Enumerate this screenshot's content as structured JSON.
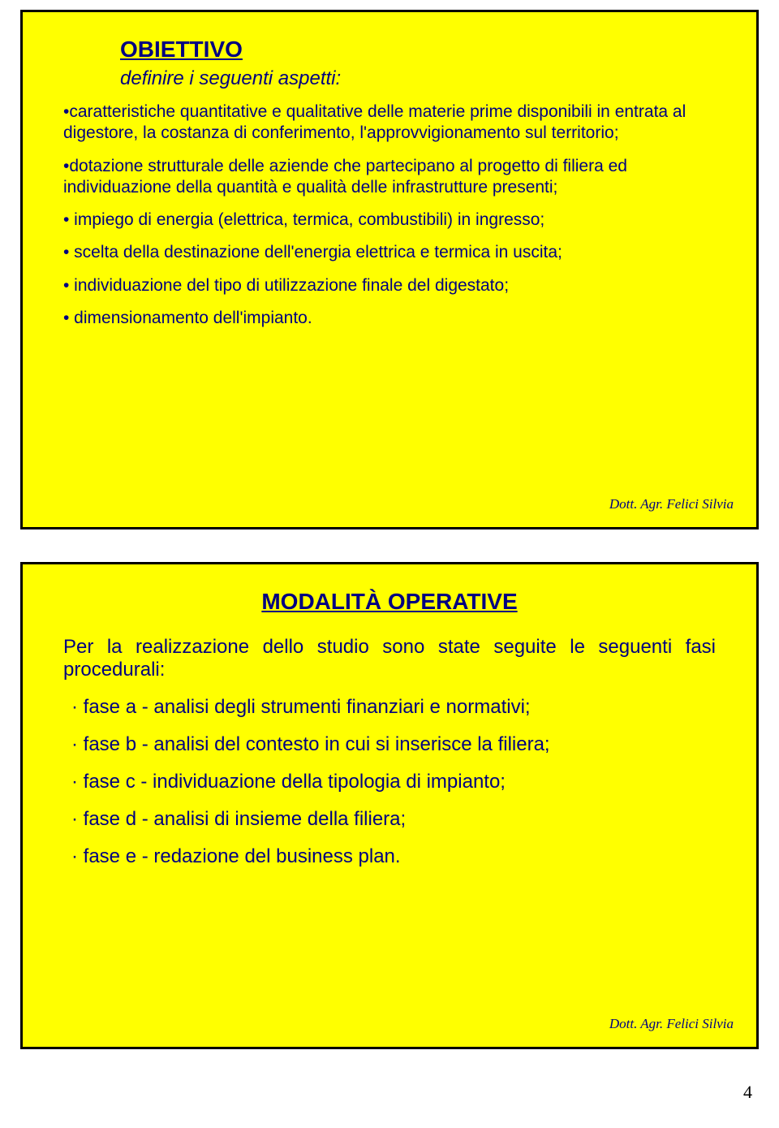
{
  "page": {
    "number": "4"
  },
  "slide1": {
    "title": "OBIETTIVO",
    "subtitle": "definire i seguenti aspetti:",
    "bullets": [
      "•caratteristiche quantitative e qualitative delle materie prime disponibili in entrata al digestore, la costanza di conferimento, l'approvvigionamento sul territorio;",
      "•dotazione strutturale delle aziende che partecipano al progetto di filiera ed individuazione della quantità e qualità delle infrastrutture presenti;",
      "• impiego di energia (elettrica, termica, combustibili) in ingresso;",
      "• scelta della destinazione dell'energia elettrica e termica in uscita;",
      "• individuazione del tipo di utilizzazione finale del digestato;",
      "• dimensionamento dell'impianto."
    ],
    "attribution": "Dott. Agr. Felici Silvia"
  },
  "slide2": {
    "title": "MODALITÀ OPERATIVE",
    "intro": "Per la realizzazione dello studio sono state seguite le seguenti fasi procedurali:",
    "bullets": [
      "· fase a - analisi degli strumenti finanziari e normativi;",
      "· fase b - analisi del contesto in cui si inserisce la filiera;",
      "· fase c - individuazione della tipologia di impianto;",
      "· fase d - analisi di insieme della filiera;",
      "· fase e - redazione del business plan."
    ],
    "attribution": "Dott. Agr. Felici Silvia"
  },
  "style": {
    "background_color": "#ffff00",
    "border_color": "#000000",
    "text_color": "#000080",
    "font_family_body": "Comic Sans MS",
    "font_family_attrib": "Times New Roman",
    "title_fontsize": 28,
    "subtitle_fontsize": 24,
    "bullet1_fontsize": 21,
    "bullet2_fontsize": 24,
    "attrib_fontsize": 17,
    "slide_width": 910,
    "slide1_height": 640,
    "slide2_height": 600
  }
}
